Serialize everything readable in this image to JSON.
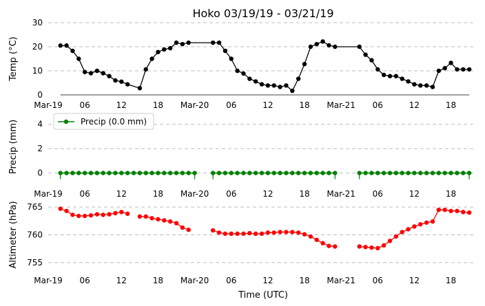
{
  "chart_data": {
    "type": "line",
    "title": "Hoko 03/19/19 - 03/21/19",
    "xlabel": "Time (UTC)",
    "x_tick_labels": [
      "Mar-19",
      "06",
      "12",
      "18",
      "Mar-20",
      "06",
      "12",
      "18",
      "Mar-21",
      "06",
      "12",
      "18"
    ],
    "x_tick_hours": [
      0,
      6,
      12,
      18,
      24,
      30,
      36,
      42,
      48,
      54,
      60,
      66
    ],
    "xlim": [
      0,
      70
    ],
    "panels": [
      {
        "ylabel": "Temp ($^\\circ$C)",
        "ylim": [
          0,
          30
        ],
        "yticks": [
          "0",
          "10",
          "20",
          "30"
        ],
        "ytick_values": [
          0,
          10,
          20,
          30
        ],
        "color": "#000000",
        "baseline": true,
        "series": [
          {
            "x": [
              2,
              3,
              4,
              5,
              6,
              7,
              8,
              9,
              10,
              11,
              12,
              13,
              15,
              16,
              17,
              18,
              19,
              20,
              21,
              22,
              23,
              27,
              28,
              29,
              30,
              31,
              32,
              33,
              34,
              35,
              36,
              37,
              38,
              39,
              40,
              41,
              42,
              43,
              44,
              45,
              46,
              47,
              51,
              52,
              53,
              54,
              55,
              56,
              57,
              58,
              59,
              60,
              61,
              62,
              63,
              64,
              65,
              66,
              67,
              68,
              69
            ],
            "values": [
              20.5,
              20.5,
              18.3,
              15,
              9.5,
              9,
              10,
              9,
              7.8,
              6,
              5.5,
              4.4,
              2.8,
              10.6,
              15,
              17.8,
              18.9,
              19.4,
              21.7,
              21.1,
              21.7,
              21.7,
              21.7,
              18.3,
              15,
              10,
              8.9,
              6.7,
              5.6,
              4.4,
              3.9,
              3.9,
              3.3,
              3.9,
              1.7,
              6.7,
              12.8,
              20,
              21.1,
              22.2,
              20.6,
              20,
              20,
              16.7,
              14.4,
              10.6,
              8.3,
              7.8,
              7.8,
              6.7,
              5.6,
              4.4,
              3.9,
              3.9,
              3.3,
              10,
              11.1,
              13.3,
              10.6,
              10.6,
              10.6
            ]
          }
        ]
      },
      {
        "ylabel": "Precip (mm)",
        "ylim": [
          -0.7,
          5.0
        ],
        "yticks": [
          "0",
          "2",
          "4"
        ],
        "ytick_values": [
          0,
          2,
          4
        ],
        "color": "#008000",
        "stems": true,
        "legend": "Precip (0.0 mm)",
        "series": [
          {
            "x": [
              2,
              3,
              4,
              5,
              6,
              7,
              8,
              9,
              10,
              11,
              12,
              13,
              14,
              15,
              16,
              17,
              18,
              19,
              20,
              21,
              22,
              23,
              24,
              27,
              28,
              29,
              30,
              31,
              32,
              33,
              34,
              35,
              36,
              37,
              38,
              39,
              40,
              41,
              42,
              43,
              44,
              45,
              46,
              47,
              51,
              52,
              53,
              54,
              55,
              56,
              57,
              58,
              59,
              60,
              61,
              62,
              63,
              64,
              65,
              66,
              67,
              68,
              69
            ],
            "values": [
              0,
              0,
              0,
              0,
              0,
              0,
              0,
              0,
              0,
              0,
              0,
              0,
              0,
              0,
              0,
              0,
              0,
              0,
              0,
              0,
              0,
              0,
              0,
              0,
              0,
              0,
              0,
              0,
              0,
              0,
              0,
              0,
              0,
              0,
              0,
              0,
              0,
              0,
              0,
              0,
              0,
              0,
              0,
              0,
              0,
              0,
              0,
              0,
              0,
              0,
              0,
              0,
              0,
              0,
              0,
              0,
              0,
              0,
              0,
              0,
              0,
              0,
              0
            ]
          }
        ]
      },
      {
        "ylabel": "Altimeter (hPa)",
        "ylim": [
          753.5,
          766.5
        ],
        "yticks": [
          "755",
          "760",
          "765"
        ],
        "ytick_values": [
          755,
          760,
          765
        ],
        "color": "#ff0000",
        "series": [
          {
            "x": [
              2,
              3,
              4,
              5,
              6,
              7,
              8,
              9,
              10,
              11,
              12,
              13
            ],
            "values": [
              764.7,
              764.3,
              763.6,
              763.4,
              763.4,
              763.5,
              763.7,
              763.6,
              763.7,
              763.9,
              764.1,
              763.8
            ]
          },
          {
            "x": [
              15,
              16,
              17,
              18,
              19,
              20,
              21,
              22,
              23
            ],
            "values": [
              763.3,
              763.3,
              763,
              762.8,
              762.6,
              762.4,
              762.1,
              761.3,
              760.9
            ]
          },
          {
            "x": [
              27,
              28,
              29,
              30,
              31,
              32,
              33,
              34,
              35,
              36,
              37,
              38,
              39,
              40,
              41,
              42,
              43,
              44,
              45,
              46,
              47
            ],
            "values": [
              760.8,
              760.4,
              760.2,
              760.2,
              760.2,
              760.2,
              760.3,
              760.2,
              760.2,
              760.4,
              760.4,
              760.5,
              760.5,
              760.5,
              760.4,
              760.1,
              759.7,
              759.1,
              758.5,
              758,
              757.9
            ]
          },
          {
            "x": [
              51,
              52,
              53,
              54,
              55,
              56,
              57,
              58,
              59,
              60,
              61,
              62,
              63,
              64,
              65,
              66,
              67,
              68,
              69
            ],
            "values": [
              757.9,
              757.8,
              757.7,
              757.6,
              758.1,
              758.9,
              759.7,
              760.5,
              761,
              761.5,
              761.9,
              762.2,
              762.4,
              764.5,
              764.5,
              764.3,
              764.3,
              764.1,
              764
            ]
          }
        ]
      }
    ]
  }
}
